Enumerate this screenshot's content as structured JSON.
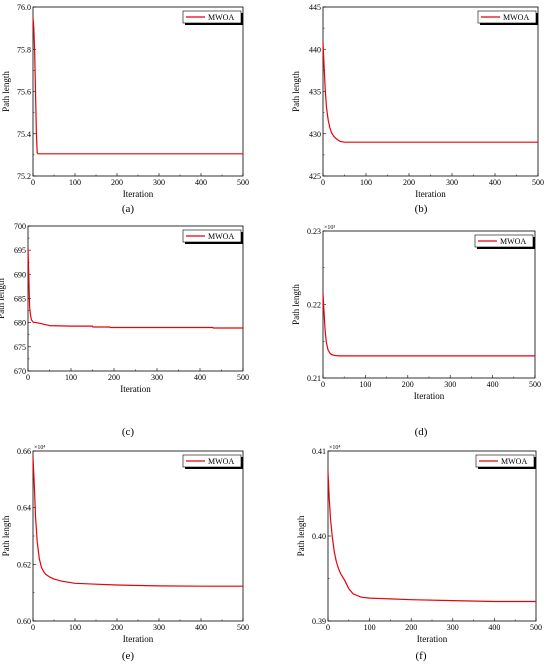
{
  "figure": {
    "panels": [
      {
        "caption": "(a)"
      },
      {
        "caption": "(b)"
      },
      {
        "caption": "(c)"
      },
      {
        "caption": "(d)"
      },
      {
        "caption": "(e)"
      },
      {
        "caption": "(f)"
      }
    ]
  },
  "chart_data": [
    {
      "type": "line",
      "xlabel": "Iteration",
      "ylabel": "Path length",
      "xlim": [
        0,
        500
      ],
      "ylim": [
        75.2,
        76.0
      ],
      "xticks": [
        "0",
        "100",
        "200",
        "300",
        "400",
        "500"
      ],
      "yticks": [
        "75.2",
        "75.4",
        "75.6",
        "75.8",
        "76.0"
      ],
      "multiplier": "",
      "legend_position": "top-right",
      "series": [
        {
          "name": "MWOA",
          "color": "#e8000b",
          "x": [
            0,
            2,
            4,
            6,
            8,
            10,
            12,
            20,
            50,
            100,
            200,
            300,
            400,
            500
          ],
          "y": [
            75.95,
            75.9,
            75.78,
            75.6,
            75.4,
            75.31,
            75.305,
            75.305,
            75.305,
            75.305,
            75.305,
            75.305,
            75.305,
            75.305
          ]
        }
      ]
    },
    {
      "type": "line",
      "xlabel": "Iteration",
      "ylabel": "Path length",
      "xlim": [
        0,
        500
      ],
      "ylim": [
        425,
        445
      ],
      "xticks": [
        "0",
        "100",
        "200",
        "300",
        "400",
        "500"
      ],
      "yticks": [
        "425",
        "430",
        "435",
        "440",
        "445"
      ],
      "multiplier": "",
      "legend_position": "top-right",
      "series": [
        {
          "name": "MWOA",
          "color": "#e8000b",
          "x": [
            0,
            2,
            5,
            8,
            12,
            16,
            20,
            25,
            30,
            35,
            40,
            45,
            50,
            60,
            100,
            200,
            300,
            400,
            500
          ],
          "y": [
            440.8,
            438.5,
            435.5,
            433.2,
            431.6,
            430.7,
            430.1,
            429.7,
            429.45,
            429.25,
            429.1,
            429.05,
            429.0,
            429.0,
            429.0,
            429.0,
            429.0,
            429.0,
            429.0
          ]
        }
      ]
    },
    {
      "type": "line",
      "xlabel": "Iteration",
      "ylabel": "Path length",
      "xlim": [
        0,
        500
      ],
      "ylim": [
        670,
        700
      ],
      "xticks": [
        "0",
        "100",
        "200",
        "300",
        "400",
        "500"
      ],
      "yticks": [
        "670",
        "675",
        "680",
        "685",
        "690",
        "695",
        "700"
      ],
      "multiplier": "",
      "legend_position": "top-right",
      "series": [
        {
          "name": "MWOA",
          "color": "#e8000b",
          "x": [
            0,
            1,
            2,
            3,
            4,
            6,
            8,
            12,
            20,
            30,
            40,
            50,
            100,
            150,
            151,
            190,
            191,
            300,
            400,
            430,
            431,
            500
          ],
          "y": [
            695.5,
            692.5,
            689.0,
            685.5,
            683.0,
            681.5,
            680.6,
            680.1,
            680.0,
            679.8,
            679.6,
            679.4,
            679.3,
            679.3,
            679.1,
            679.1,
            679.0,
            679.0,
            679.0,
            679.0,
            678.9,
            678.9
          ]
        }
      ]
    },
    {
      "type": "line",
      "xlabel": "Iteration",
      "ylabel": "Path length",
      "xlim": [
        0,
        500
      ],
      "ylim": [
        0.21,
        0.23
      ],
      "xticks": [
        "0",
        "100",
        "200",
        "300",
        "400",
        "500"
      ],
      "yticks": [
        "0.21",
        "0.22",
        "0.23"
      ],
      "multiplier": "×10³",
      "legend_position": "top-right",
      "series": [
        {
          "name": "MWOA",
          "color": "#e8000b",
          "x": [
            0,
            2,
            5,
            8,
            12,
            16,
            20,
            25,
            30,
            40,
            50,
            100,
            200,
            300,
            400,
            500
          ],
          "y": [
            0.2215,
            0.2195,
            0.2165,
            0.2148,
            0.2138,
            0.2134,
            0.2132,
            0.2131,
            0.21305,
            0.213,
            0.213,
            0.213,
            0.213,
            0.213,
            0.213,
            0.213
          ]
        }
      ]
    },
    {
      "type": "line",
      "xlabel": "Iteration",
      "ylabel": "Path length",
      "xlim": [
        0,
        500
      ],
      "ylim": [
        0.6,
        0.66
      ],
      "xticks": [
        "0",
        "100",
        "200",
        "300",
        "400",
        "500"
      ],
      "yticks": [
        "0.60",
        "0.62",
        "0.64",
        "0.66"
      ],
      "multiplier": "×10⁴",
      "legend_position": "top-right",
      "series": [
        {
          "name": "MWOA",
          "color": "#e8000b",
          "x": [
            0,
            3,
            6,
            10,
            15,
            20,
            25,
            30,
            40,
            50,
            70,
            100,
            150,
            200,
            300,
            400,
            500
          ],
          "y": [
            0.658,
            0.648,
            0.637,
            0.628,
            0.622,
            0.619,
            0.6175,
            0.6165,
            0.6155,
            0.6148,
            0.614,
            0.6133,
            0.613,
            0.6127,
            0.6124,
            0.6123,
            0.6123
          ]
        }
      ]
    },
    {
      "type": "line",
      "xlabel": "Iteration",
      "ylabel": "Path length",
      "xlim": [
        0,
        500
      ],
      "ylim": [
        0.39,
        0.41
      ],
      "xticks": [
        "0",
        "100",
        "200",
        "300",
        "400",
        "500"
      ],
      "yticks": [
        "0.39",
        "0.40",
        "0.41"
      ],
      "multiplier": "×10⁴",
      "legend_position": "top-right",
      "series": [
        {
          "name": "MWOA",
          "color": "#e8000b",
          "x": [
            0,
            3,
            6,
            10,
            15,
            20,
            25,
            30,
            40,
            50,
            60,
            70,
            80,
            100,
            150,
            200,
            300,
            400,
            500
          ],
          "y": [
            0.4075,
            0.4045,
            0.402,
            0.4,
            0.3982,
            0.397,
            0.3962,
            0.3956,
            0.3948,
            0.3938,
            0.3932,
            0.393,
            0.3928,
            0.3927,
            0.3926,
            0.3925,
            0.3924,
            0.3923,
            0.3923
          ]
        }
      ]
    }
  ]
}
